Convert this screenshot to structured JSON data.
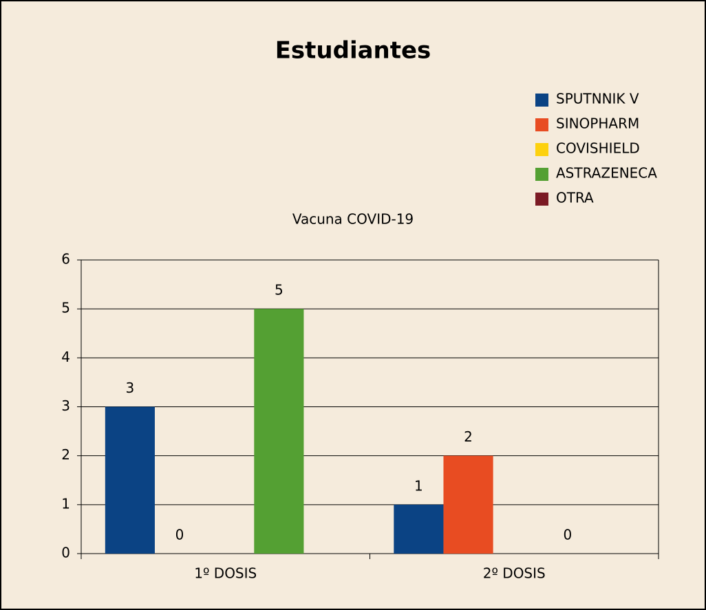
{
  "chart_data": {
    "type": "bar",
    "title": "Estudiantes",
    "subtitle": "Vacuna COVID-19",
    "categories": [
      "1º DOSIS",
      "2º DOSIS"
    ],
    "series": [
      {
        "name": "SPUTNNIK V",
        "color": "#0b4384",
        "values": [
          3,
          1
        ]
      },
      {
        "name": "SINOPHARM",
        "color": "#e84c22",
        "values": [
          0,
          2
        ]
      },
      {
        "name": "COVISHIELD",
        "color": "#fdd10e",
        "values": [
          null,
          null
        ]
      },
      {
        "name": "ASTRAZENECA",
        "color": "#54a033",
        "values": [
          5,
          0
        ]
      },
      {
        "name": "OTRA",
        "color": "#7b1a24",
        "values": [
          null,
          null
        ]
      }
    ],
    "ylim": [
      0,
      6
    ],
    "yticks": [
      0,
      1,
      2,
      3,
      4,
      5,
      6
    ],
    "grid": true,
    "legend": "top-right"
  }
}
